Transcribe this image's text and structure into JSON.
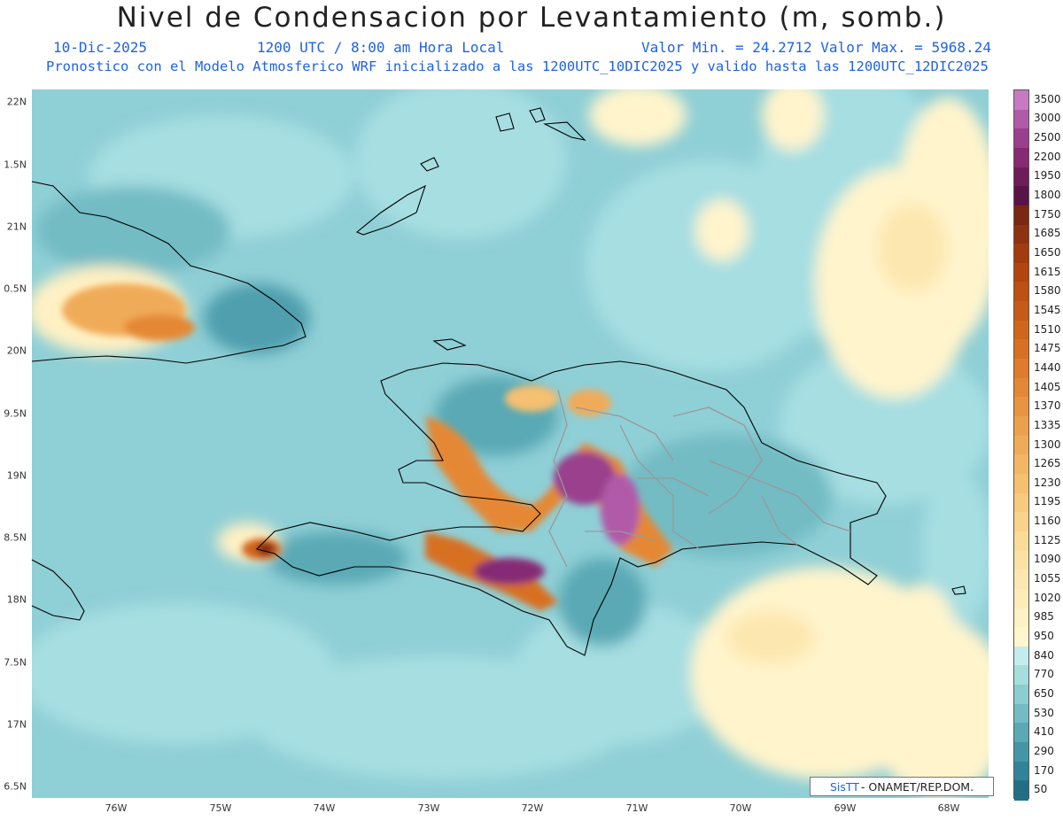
{
  "header": {
    "title": "Nivel de Condensacion por Levantamiento (m, somb.)",
    "date": "10-Dic-2025",
    "time": "1200 UTC / 8:00 am Hora Local",
    "value_range": "Valor Min. = 24.2712  Valor Max. = 5968.24",
    "description": "Pronostico con el Modelo Atmosferico WRF inicializado a las 1200UTC_10DIC2025 y valido hasta las  1200UTC_12DIC2025"
  },
  "axes": {
    "lat_labels": [
      "22N",
      "1.5N",
      "21N",
      "0.5N",
      "20N",
      "9.5N",
      "19N",
      "8.5N",
      "18N",
      "7.5N",
      "17N",
      "6.5N"
    ],
    "lon_labels": [
      "76W",
      "75W",
      "74W",
      "73W",
      "72W",
      "71W",
      "70W",
      "69W",
      "68W"
    ]
  },
  "colorbar": {
    "labels": [
      "3500",
      "3000",
      "2500",
      "2200",
      "1950",
      "1800",
      "1750",
      "1685",
      "1650",
      "1615",
      "1580",
      "1545",
      "1510",
      "1475",
      "1440",
      "1405",
      "1370",
      "1335",
      "1300",
      "1265",
      "1230",
      "1195",
      "1160",
      "1125",
      "1090",
      "1055",
      "1020",
      "985",
      "950",
      "840",
      "770",
      "650",
      "530",
      "410",
      "290",
      "170",
      "50"
    ],
    "colors": [
      "#c77ac2",
      "#b05aa8",
      "#9a3f8d",
      "#862a74",
      "#6e1d5a",
      "#591447",
      "#7a2812",
      "#8e3210",
      "#a23c0f",
      "#b2450f",
      "#bd5012",
      "#c75a16",
      "#d0651c",
      "#d87024",
      "#df7c2c",
      "#e48836",
      "#e99440",
      "#eda04c",
      "#f0ab58",
      "#f3b664",
      "#f5c070",
      "#f7ca7e",
      "#f9d38b",
      "#fadb98",
      "#fbe1a4",
      "#fde7b0",
      "#fdecba",
      "#fef1c4",
      "#fff6d0",
      "#c5ecec",
      "#a6dede",
      "#8ccdd2",
      "#73bcc4",
      "#5aa9b5",
      "#4496a6",
      "#318497",
      "#226f85"
    ]
  },
  "credit": {
    "logo": "SisTT",
    "text": "- ONAMET/REP.DOM."
  }
}
